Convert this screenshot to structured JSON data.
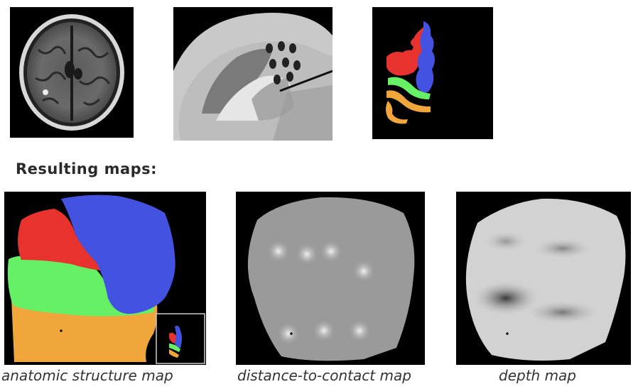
{
  "heading": "Resulting maps:",
  "captions": {
    "anatomic": "anatomic structure map",
    "distance": "distance-to-contact map",
    "depth": "depth map"
  },
  "colors": {
    "red": "#e8322d",
    "blue": "#4352e0",
    "green": "#66f066",
    "orange": "#f0a63a"
  }
}
